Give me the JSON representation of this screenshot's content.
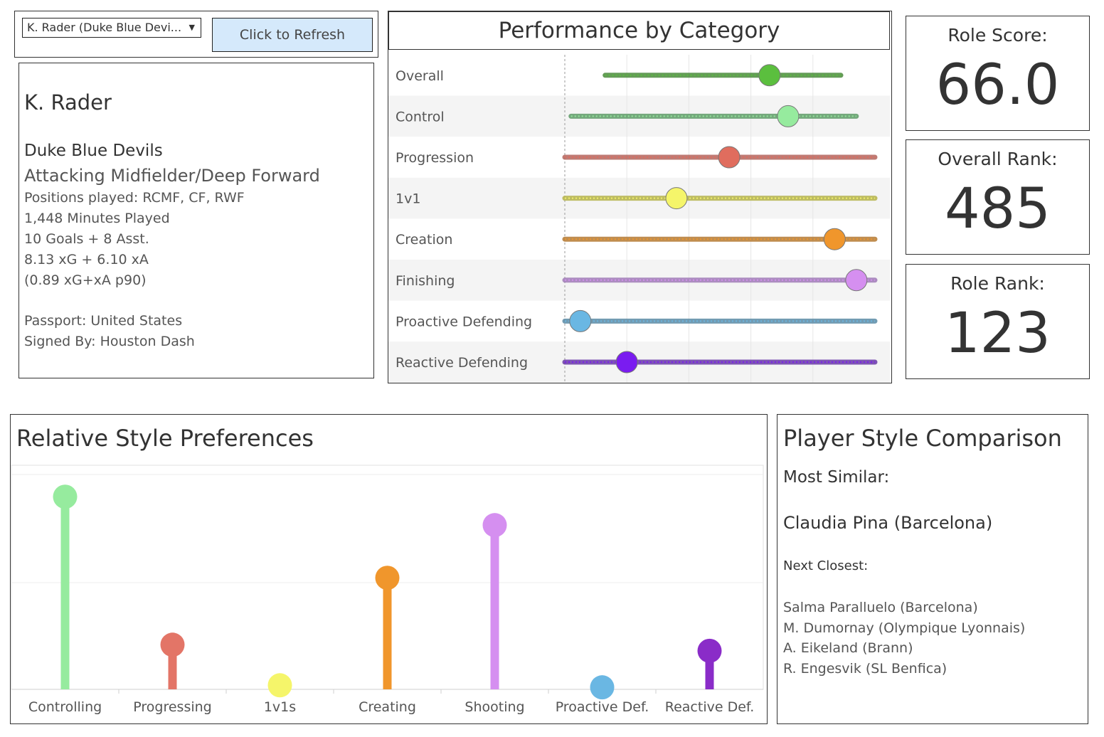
{
  "selector": {
    "player_value": "K. Rader (Duke Blue Devi...",
    "caret": "▼",
    "refresh_label": "Click to Refresh"
  },
  "player": {
    "name": "K. Rader",
    "team": "Duke Blue Devils",
    "role": "Attacking Midfielder/Deep Forward",
    "positions": "Positions played: RCMF, CF, RWF",
    "minutes": "1,448 Minutes Played",
    "goals_assists": "10 Goals + 8 Asst.",
    "xg_xa": "8.13 xG + 6.10 xA",
    "xgxa_p90": "(0.89 xG+xA p90)",
    "passport": "Passport: United States",
    "signed_by": "Signed By: Houston Dash"
  },
  "kpis": {
    "role_score": {
      "label": "Role Score:",
      "value": "66.0"
    },
    "overall_rank": {
      "label": "Overall Rank:",
      "value": "485"
    },
    "role_rank": {
      "label": "Role Rank:",
      "value": "123"
    }
  },
  "performance": {
    "title": "Performance by Category",
    "chart_data": {
      "type": "scatter",
      "title": "Performance by Category",
      "x_range": [
        0,
        100
      ],
      "series": [
        {
          "category": "Overall",
          "range": [
            13,
            89
          ],
          "player": 66,
          "color": "#5bbf3e",
          "line_color": "#4a8a3a"
        },
        {
          "category": "Control",
          "range": [
            2,
            94
          ],
          "player": 72,
          "color": "#96eb9e",
          "line_color": "#5e9b68"
        },
        {
          "category": "Progression",
          "range": [
            0,
            100
          ],
          "player": 53,
          "color": "#e06d5e",
          "line_color": "#b5645c"
        },
        {
          "category": "1v1",
          "range": [
            0,
            100
          ],
          "player": 36,
          "color": "#f5f56a",
          "line_color": "#b5b34a"
        },
        {
          "category": "Creation",
          "range": [
            0,
            100
          ],
          "player": 87,
          "color": "#f0962c",
          "line_color": "#b57a32"
        },
        {
          "category": "Finishing",
          "range": [
            0,
            100
          ],
          "player": 94,
          "color": "#d58ff0",
          "line_color": "#a07bb8"
        },
        {
          "category": "Proactive Defending",
          "range": [
            0,
            100
          ],
          "player": 5,
          "color": "#6ab7e3",
          "line_color": "#5a8aa5"
        },
        {
          "category": "Reactive Defending",
          "range": [
            0,
            100
          ],
          "player": 20,
          "color": "#7a1cf0",
          "line_color": "#6a3aa8"
        }
      ]
    }
  },
  "style": {
    "title": "Relative Style Preferences",
    "chart_data": {
      "type": "lollipop",
      "title": "Relative Style Preferences",
      "categories": [
        "Controlling",
        "Progressing",
        "1v1s",
        "Creating",
        "Shooting",
        "Proactive Def.",
        "Reactive Def."
      ],
      "values": [
        0.95,
        0.22,
        0.02,
        0.55,
        0.81,
        0.01,
        0.19
      ],
      "colors": [
        "#96eb9e",
        "#e37567",
        "#f5f56a",
        "#f0962c",
        "#d58ff0",
        "#6ab7e3",
        "#8a2cc8"
      ],
      "ylim": [
        0,
        1
      ]
    }
  },
  "comparison": {
    "title": "Player Style Comparison",
    "most_similar_label": "Most Similar:",
    "most_similar": "Claudia Pina (Barcelona)",
    "next_closest_label": "Next Closest:",
    "next_closest": [
      "Salma Paralluelo (Barcelona)",
      "M. Dumornay (Olympique Lyonnais)",
      "A. Eikeland (Brann)",
      "R. Engesvik (SL Benfica)"
    ]
  }
}
